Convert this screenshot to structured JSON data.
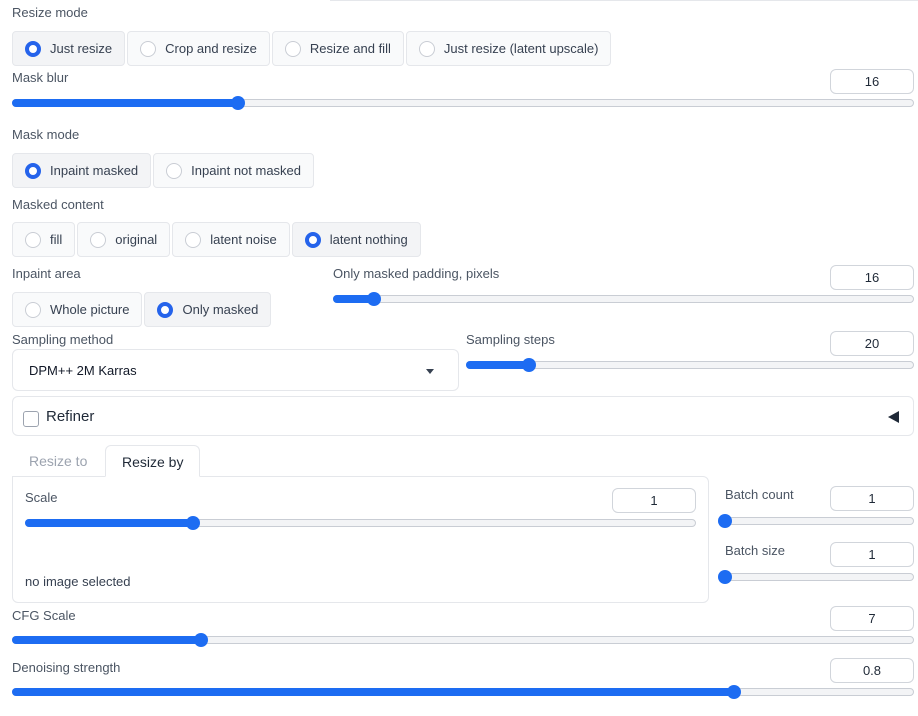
{
  "resize_mode": {
    "label": "Resize mode",
    "options": [
      "Just resize",
      "Crop and resize",
      "Resize and fill",
      "Just resize (latent upscale)"
    ],
    "selected": "Just resize"
  },
  "mask_blur": {
    "label": "Mask blur",
    "value": "16",
    "fraction": 0.25
  },
  "mask_mode": {
    "label": "Mask mode",
    "options": [
      "Inpaint masked",
      "Inpaint not masked"
    ],
    "selected": "Inpaint masked"
  },
  "masked_content": {
    "label": "Masked content",
    "options": [
      "fill",
      "original",
      "latent noise",
      "latent nothing"
    ],
    "selected": "latent nothing"
  },
  "inpaint_area": {
    "label": "Inpaint area",
    "options": [
      "Whole picture",
      "Only masked"
    ],
    "selected": "Only masked"
  },
  "masked_padding": {
    "label": "Only masked padding, pixels",
    "value": "16",
    "fraction": 0.07
  },
  "sampling_method": {
    "label": "Sampling method",
    "value": "DPM++ 2M Karras"
  },
  "sampling_steps": {
    "label": "Sampling steps",
    "value": "20",
    "fraction": 0.14
  },
  "refiner": {
    "label": "Refiner",
    "checked": false
  },
  "resize_tabs": {
    "tab1": "Resize to",
    "tab2": "Resize by",
    "active": "Resize by"
  },
  "scale": {
    "label": "Scale",
    "value": "1",
    "fraction": 0.25
  },
  "no_image_text": "no image selected",
  "batch_count": {
    "label": "Batch count",
    "value": "1",
    "fraction": 0.0
  },
  "batch_size": {
    "label": "Batch size",
    "value": "1",
    "fraction": 0.0
  },
  "cfg_scale": {
    "label": "CFG Scale",
    "value": "7",
    "fraction": 0.21
  },
  "denoising_strength": {
    "label": "Denoising strength",
    "value": "0.8",
    "fraction": 0.8
  },
  "colors": {
    "accent": "#1d6cf2",
    "border": "#e5e7eb",
    "label": "#4b5563"
  }
}
